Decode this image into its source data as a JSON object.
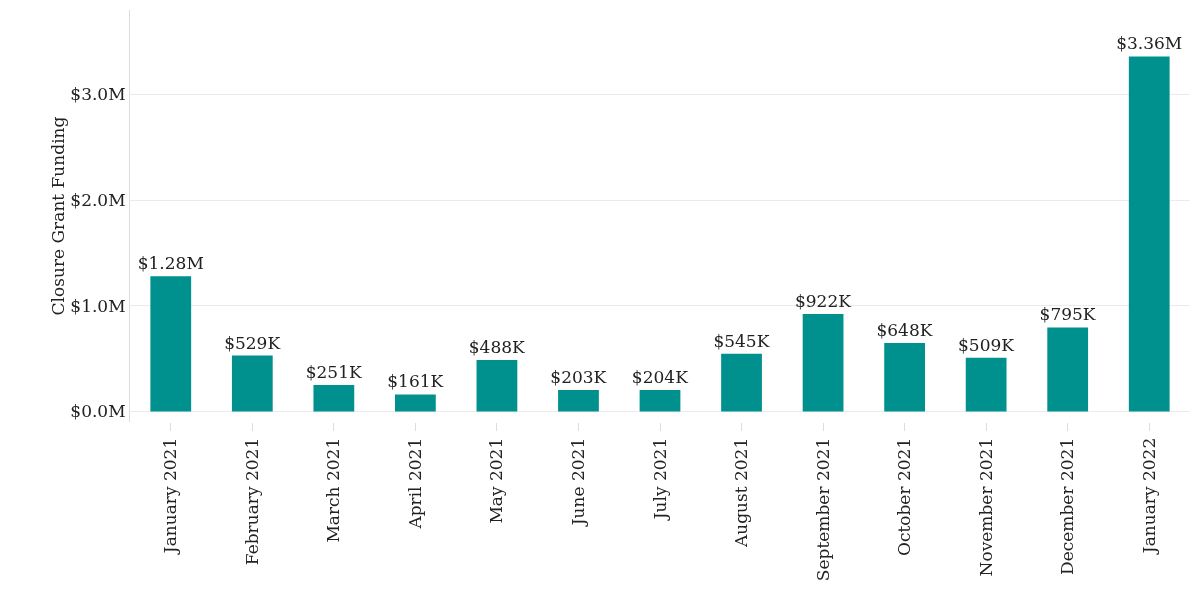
{
  "chart_data": {
    "type": "bar",
    "ylabel": "Closure Grant Funding",
    "categories": [
      "January 2021",
      "February 2021",
      "March 2021",
      "April 2021",
      "May 2021",
      "June 2021",
      "July 2021",
      "August 2021",
      "September 2021",
      "October 2021",
      "November 2021",
      "December 2021",
      "January 2022"
    ],
    "values": [
      1280000,
      529000,
      251000,
      161000,
      488000,
      203000,
      204000,
      545000,
      922000,
      648000,
      509000,
      795000,
      3360000
    ],
    "value_labels": [
      "$1.28M",
      "$529K",
      "$251K",
      "$161K",
      "$488K",
      "$203K",
      "$204K",
      "$545K",
      "$922K",
      "$648K",
      "$509K",
      "$795K",
      "$3.36M"
    ],
    "color": "#00918f",
    "ylim": [
      -100000,
      3800000
    ],
    "yticks": [
      {
        "value": 0,
        "label": "$0.0M"
      },
      {
        "value": 1000000,
        "label": "$1.0M"
      },
      {
        "value": 2000000,
        "label": "$2.0M"
      },
      {
        "value": 3000000,
        "label": "$3.0M"
      }
    ],
    "grid": "y",
    "legend": false
  }
}
